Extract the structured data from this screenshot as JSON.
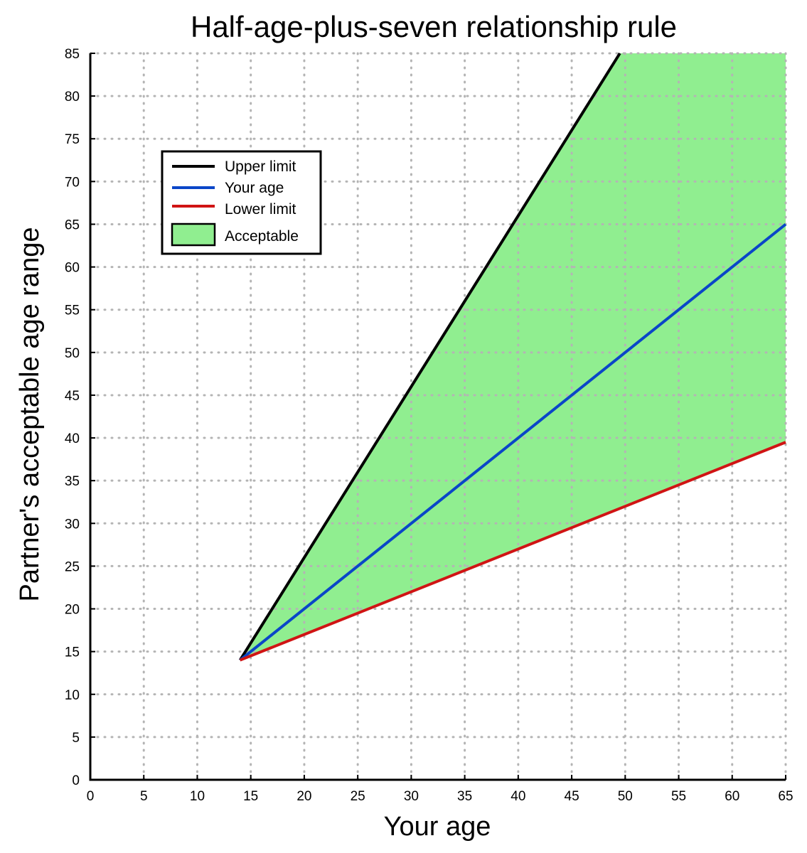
{
  "chart_data": {
    "type": "line",
    "title": "Half-age-plus-seven relationship rule",
    "xlabel": "Your age",
    "ylabel": "Partner's acceptable age range",
    "xlim": [
      0,
      65
    ],
    "ylim": [
      0,
      85
    ],
    "x_ticks": [
      0,
      5,
      10,
      15,
      20,
      25,
      30,
      35,
      40,
      45,
      50,
      55,
      60,
      65
    ],
    "y_ticks": [
      0,
      5,
      10,
      15,
      20,
      25,
      30,
      35,
      40,
      45,
      50,
      55,
      60,
      65,
      70,
      75,
      80,
      85
    ],
    "grid": true,
    "legend_position": "top-left",
    "series": [
      {
        "name": "Upper limit",
        "color": "#000000",
        "x": [
          14,
          49.5
        ],
        "y": [
          14,
          85
        ]
      },
      {
        "name": "Your age",
        "color": "#0a46c8",
        "x": [
          14,
          65
        ],
        "y": [
          14,
          65
        ]
      },
      {
        "name": "Lower limit",
        "color": "#d01414",
        "x": [
          14,
          65
        ],
        "y": [
          14,
          39.5
        ]
      }
    ],
    "area": {
      "name": "Acceptable",
      "color": "#90ee90",
      "between": [
        "Lower limit",
        "Upper limit"
      ]
    }
  }
}
